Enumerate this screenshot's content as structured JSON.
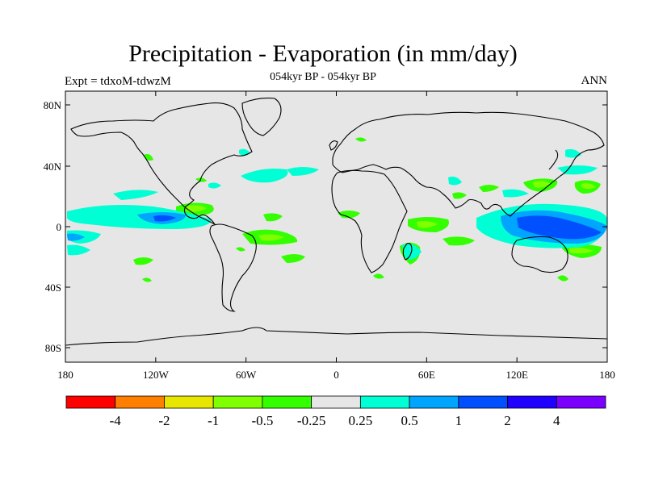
{
  "header": {
    "title": "Precipitation - Evaporation (in mm/day)",
    "subtitle": "054kyr BP - 054kyr BP",
    "left_label": "Expt = tdxoM-tdwzM",
    "right_label": "ANN"
  },
  "map": {
    "projection": "cylindrical equidistant",
    "lon_range": [
      -180,
      180
    ],
    "lat_range": [
      -90,
      90
    ],
    "background_color": "#e6e6e6",
    "coastline_color": "#000000",
    "lon_ticks": [
      "180",
      "120W",
      "60W",
      "0",
      "60E",
      "120E",
      "180"
    ],
    "lat_ticks": [
      "80N",
      "40N",
      "0",
      "40S",
      "80S"
    ]
  },
  "colorbar": {
    "colors": [
      "#ff0000",
      "#ff7f00",
      "#e6e600",
      "#80ff00",
      "#33ff00",
      "#e6e6e6",
      "#00ffd5",
      "#00a5ff",
      "#0050ff",
      "#2000ff",
      "#7a00ff"
    ],
    "labels": [
      "-4",
      "-2",
      "-1",
      "-0.5",
      "-0.25",
      "0.25",
      "0.5",
      "1",
      "2",
      "4"
    ]
  }
}
